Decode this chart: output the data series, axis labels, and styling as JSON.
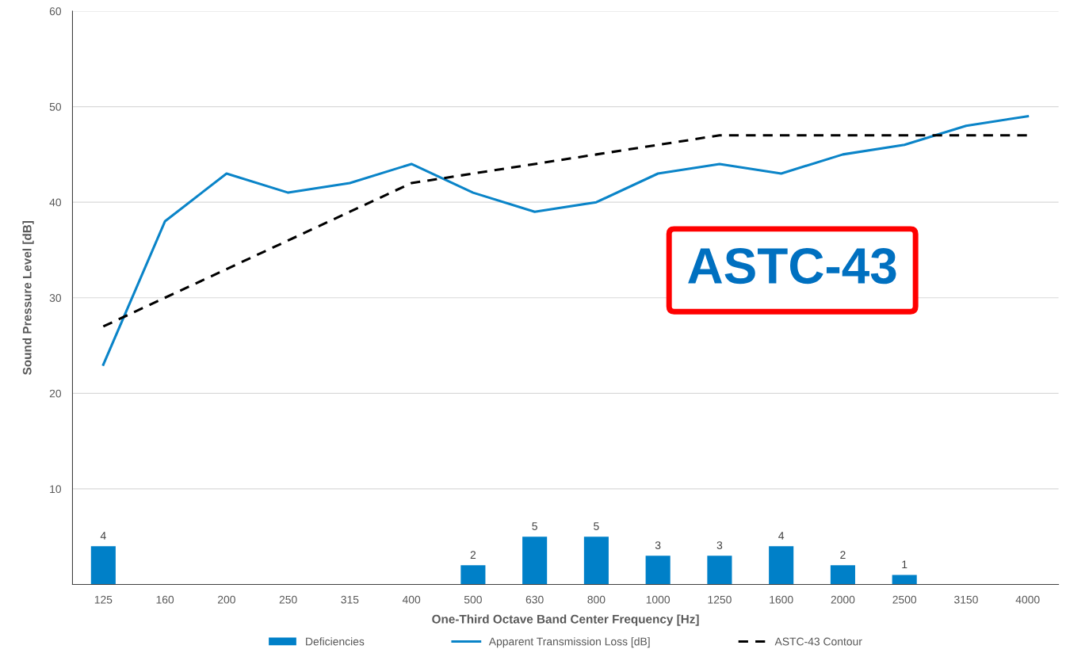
{
  "chart_data": {
    "type": "bar",
    "xlabel": "One-Third Octave Band Center Frequency [Hz]",
    "ylabel": "Sound Pressure Level [dB]",
    "categories": [
      "125",
      "160",
      "200",
      "250",
      "315",
      "400",
      "500",
      "630",
      "800",
      "1000",
      "1250",
      "1600",
      "2000",
      "2500",
      "3150",
      "4000"
    ],
    "series": [
      {
        "name": "Deficiencies",
        "color": "#0080c8",
        "values": [
          4,
          0,
          0,
          0,
          0,
          0,
          2,
          5,
          5,
          3,
          3,
          4,
          2,
          1,
          0,
          0
        ],
        "value_labels": [
          "4",
          null,
          null,
          null,
          null,
          null,
          "2",
          "5",
          "5",
          "3",
          "3",
          "4",
          "2",
          "1",
          null,
          null
        ]
      },
      {
        "name": "Apparent Transmission Loss [dB]",
        "type": "line",
        "color": "#0a84c8",
        "line_style": "solid",
        "values": [
          23,
          38,
          43,
          41,
          42,
          44,
          41,
          39,
          40,
          43,
          44,
          43,
          45,
          46,
          48,
          49
        ]
      },
      {
        "name": "ASTC-43 Contour",
        "type": "line",
        "color": "#000000",
        "line_style": "dashed",
        "values": [
          27,
          30,
          33,
          36,
          39,
          42,
          43,
          44,
          45,
          46,
          47,
          47,
          47,
          47,
          47,
          47
        ]
      }
    ],
    "ylim": [
      0,
      60
    ],
    "yticks": [
      {
        "value": 0,
        "label": null
      },
      10,
      20,
      30,
      40,
      50,
      60
    ],
    "grid": "y",
    "legend": "bottom",
    "annotations": [
      "ASTC-43"
    ]
  }
}
